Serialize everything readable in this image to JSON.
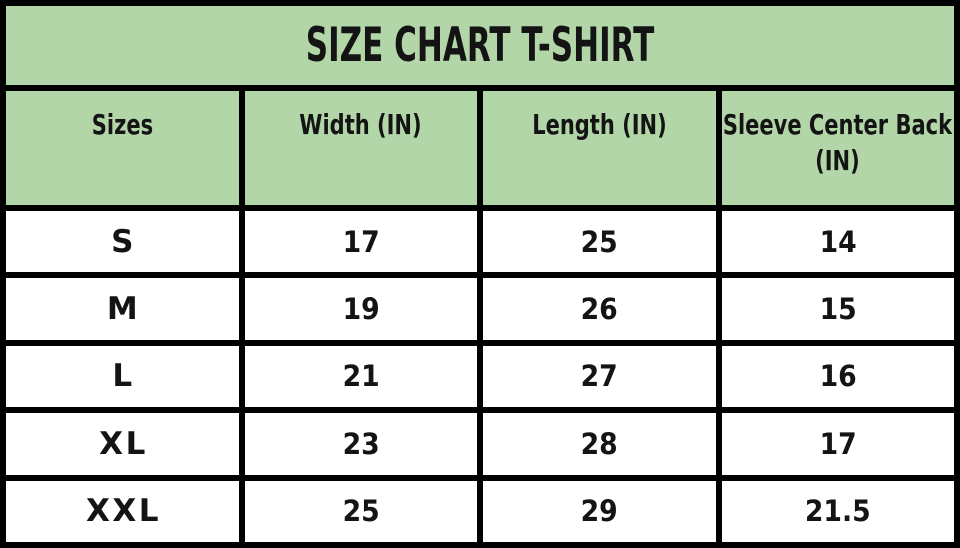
{
  "page_title": "SIZE CHART T-SHIRT",
  "colors": {
    "header_green": "#b2d6a7",
    "border_black": "#000000",
    "cell_white": "#ffffff",
    "text_black": "#141414"
  },
  "chart_data": {
    "type": "table",
    "title": "SIZE CHART T-SHIRT",
    "columns": [
      "Sizes",
      "Width (IN)",
      "Length (IN)",
      "Sleeve Center Back (IN)"
    ],
    "rows": [
      [
        "S",
        "17",
        "25",
        "14"
      ],
      [
        "M",
        "19",
        "26",
        "15"
      ],
      [
        "L",
        "21",
        "27",
        "16"
      ],
      [
        "XL",
        "23",
        "28",
        "17"
      ],
      [
        "XXL",
        "25",
        "29",
        "21.5"
      ]
    ]
  }
}
